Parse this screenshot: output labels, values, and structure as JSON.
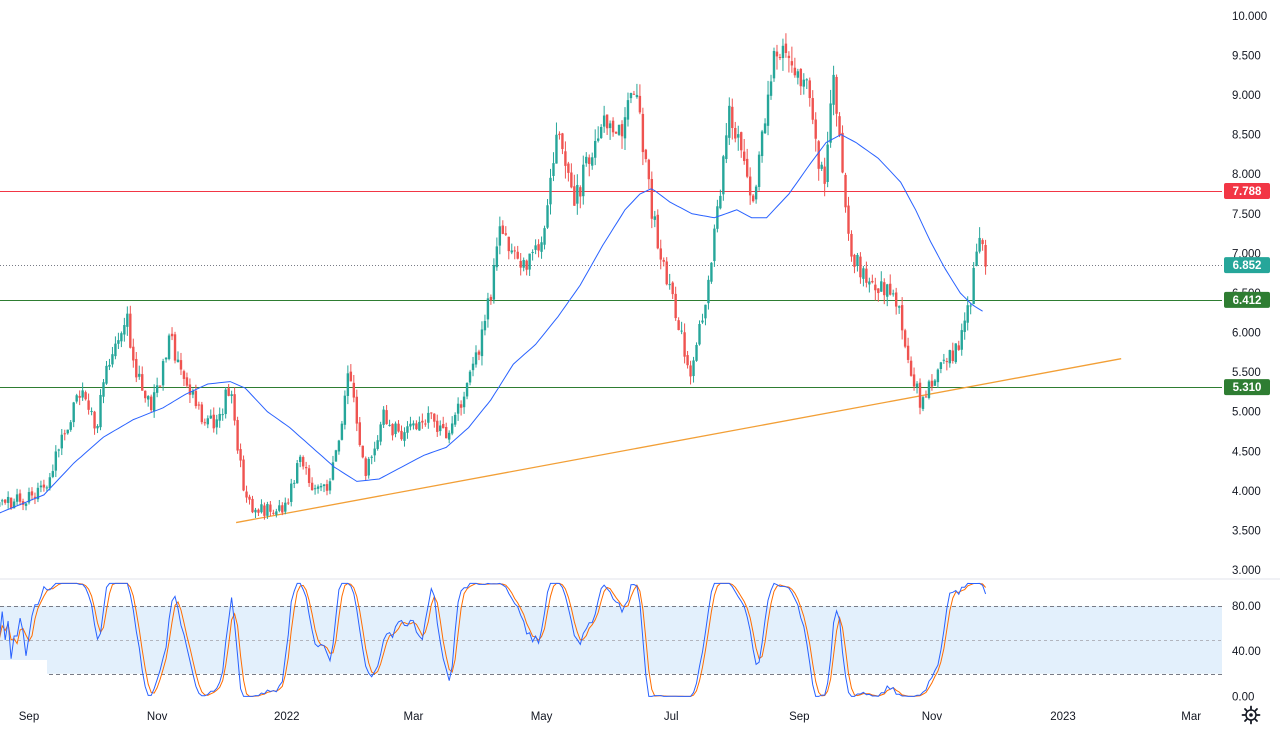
{
  "chart_data": {
    "type": "candlestick",
    "title": "",
    "colors": {
      "up": "#26a69a",
      "down": "#ef5350",
      "ma": "#2962ff",
      "trendline": "#f29f36",
      "resistance": "#f23645",
      "support": "#2e7d32",
      "last_price": "#26a69a",
      "stoch_k": "#2962ff",
      "stoch_d": "#ff6d00",
      "stoch_band": "#e3f0fc"
    },
    "price_axis": {
      "range": [
        2.9,
        10.2
      ],
      "ticks": [
        "10.000",
        "9.500",
        "9.000",
        "8.500",
        "8.000",
        "7.500",
        "7.000",
        "6.500",
        "6.000",
        "5.500",
        "5.000",
        "4.500",
        "4.000",
        "3.500",
        "3.000"
      ],
      "tick_values": [
        10,
        9.5,
        9,
        8.5,
        8,
        7.5,
        7,
        6.5,
        6,
        5.5,
        5,
        4.5,
        4,
        3.5,
        3
      ]
    },
    "time_axis": {
      "labels": [
        "Sep",
        "Nov",
        "2022",
        "Mar",
        "May",
        "Jul",
        "Sep",
        "Nov",
        "2023",
        "Mar"
      ],
      "label_weeks": [
        0,
        8.6,
        17.3,
        25.8,
        34.4,
        43.1,
        51.7,
        60.6,
        69.4,
        78
      ]
    },
    "horizontal_levels": [
      {
        "name": "resistance",
        "value": 7.788,
        "label": "7.788",
        "color": "#f23645"
      },
      {
        "name": "support-upper",
        "value": 6.412,
        "label": "6.412",
        "color": "#2e7d32"
      },
      {
        "name": "support-lower",
        "value": 5.31,
        "label": "5.310",
        "color": "#2e7d32"
      }
    ],
    "last_price": {
      "value": 6.852,
      "label": "6.852"
    },
    "trendline": {
      "start": {
        "week": 13.9,
        "price": 3.6
      },
      "end": {
        "week": 73.3,
        "price": 5.67
      }
    },
    "moving_average_points": [
      [
        -2,
        3.72
      ],
      [
        1,
        3.95
      ],
      [
        3,
        4.35
      ],
      [
        5,
        4.68
      ],
      [
        7,
        4.9
      ],
      [
        9,
        5.05
      ],
      [
        10.5,
        5.22
      ],
      [
        12,
        5.35
      ],
      [
        13.5,
        5.38
      ],
      [
        14.5,
        5.3
      ],
      [
        16,
        5.0
      ],
      [
        17.5,
        4.8
      ],
      [
        19,
        4.55
      ],
      [
        20.5,
        4.3
      ],
      [
        22,
        4.12
      ],
      [
        23.5,
        4.15
      ],
      [
        25,
        4.3
      ],
      [
        26.5,
        4.45
      ],
      [
        28,
        4.55
      ],
      [
        29.5,
        4.8
      ],
      [
        31,
        5.15
      ],
      [
        32.5,
        5.6
      ],
      [
        34,
        5.85
      ],
      [
        35.5,
        6.2
      ],
      [
        37,
        6.6
      ],
      [
        38.5,
        7.1
      ],
      [
        40,
        7.55
      ],
      [
        41,
        7.75
      ],
      [
        41.8,
        7.82
      ],
      [
        43,
        7.65
      ],
      [
        44.5,
        7.5
      ],
      [
        46,
        7.45
      ],
      [
        47.5,
        7.55
      ],
      [
        48.5,
        7.45
      ],
      [
        49.5,
        7.45
      ],
      [
        51,
        7.75
      ],
      [
        52.5,
        8.15
      ],
      [
        53.5,
        8.4
      ],
      [
        54.5,
        8.5
      ],
      [
        55.5,
        8.4
      ],
      [
        57,
        8.2
      ],
      [
        58.5,
        7.9
      ],
      [
        59.5,
        7.55
      ],
      [
        60.5,
        7.15
      ],
      [
        61.5,
        6.8
      ],
      [
        62.5,
        6.5
      ],
      [
        63.3,
        6.35
      ],
      [
        64,
        6.27
      ]
    ],
    "price_keypoints": [
      [
        -2,
        3.8
      ],
      [
        1,
        4.0
      ],
      [
        2.5,
        4.8
      ],
      [
        3.5,
        5.25
      ],
      [
        4.5,
        4.8
      ],
      [
        5.5,
        5.8
      ],
      [
        6.5,
        6.25
      ],
      [
        7.2,
        5.45
      ],
      [
        8.2,
        5.05
      ],
      [
        9.5,
        5.9
      ],
      [
        10.5,
        5.35
      ],
      [
        11.5,
        4.95
      ],
      [
        12.5,
        4.8
      ],
      [
        13.5,
        5.35
      ],
      [
        14.5,
        3.85
      ],
      [
        15.5,
        3.75
      ],
      [
        17.2,
        3.8
      ],
      [
        18.2,
        4.45
      ],
      [
        19,
        4.1
      ],
      [
        20.2,
        4.05
      ],
      [
        21.5,
        5.5
      ],
      [
        22.5,
        4.2
      ],
      [
        23.8,
        4.95
      ],
      [
        25,
        4.65
      ],
      [
        26.5,
        4.95
      ],
      [
        28,
        4.75
      ],
      [
        29.5,
        5.35
      ],
      [
        30.7,
        6.2
      ],
      [
        31.7,
        7.35
      ],
      [
        33,
        6.75
      ],
      [
        34.4,
        7.15
      ],
      [
        35.5,
        8.65
      ],
      [
        36.5,
        7.6
      ],
      [
        37.5,
        8.15
      ],
      [
        38.5,
        8.75
      ],
      [
        39.7,
        8.6
      ],
      [
        40.7,
        9.25
      ],
      [
        41.5,
        7.9
      ],
      [
        42.5,
        6.9
      ],
      [
        43.4,
        6.3
      ],
      [
        44.4,
        5.4
      ],
      [
        45.4,
        6.45
      ],
      [
        46.2,
        7.55
      ],
      [
        47,
        8.75
      ],
      [
        47.8,
        8.3
      ],
      [
        48.7,
        7.65
      ],
      [
        49.5,
        9.0
      ],
      [
        50.3,
        9.65
      ],
      [
        51.1,
        9.55
      ],
      [
        52.2,
        9.1
      ],
      [
        52.8,
        8.5
      ],
      [
        53.3,
        7.85
      ],
      [
        54,
        9.1
      ],
      [
        55.1,
        7.0
      ],
      [
        56.2,
        6.75
      ],
      [
        57.2,
        6.55
      ],
      [
        58.2,
        6.4
      ],
      [
        59.2,
        5.5
      ],
      [
        59.9,
        5.05
      ],
      [
        60.8,
        5.45
      ],
      [
        61.7,
        5.65
      ],
      [
        62.4,
        5.85
      ],
      [
        63.2,
        6.35
      ],
      [
        63.7,
        7.2
      ],
      [
        64.2,
        6.85
      ]
    ],
    "stoch_levels": [
      80,
      50,
      20
    ],
    "stoch_ticks": [
      "80.00",
      "40.00",
      "0.00"
    ],
    "stoch_tick_values": [
      80,
      40,
      0
    ],
    "stoch_range": [
      -5,
      103
    ]
  }
}
